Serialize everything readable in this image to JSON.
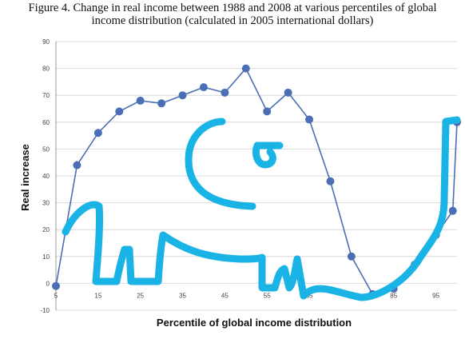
{
  "title_line1": "Figure 4. Change in real income between 1988 and 2008 at various percentiles of global",
  "title_line2": "income distribution (calculated in 2005 international dollars)",
  "chart_data": {
    "type": "line",
    "title": "Figure 4. Change in real income between 1988 and 2008 at various percentiles of global income distribution (calculated in 2005 international dollars)",
    "xlabel": "Percentile of global income distribution",
    "ylabel": "Real increase",
    "xlim": [
      5,
      100
    ],
    "ylim": [
      -10,
      90
    ],
    "yticks": [
      -10,
      0,
      10,
      20,
      30,
      40,
      50,
      60,
      70,
      80,
      90
    ],
    "xtick_labels": [
      "5",
      "15",
      "25",
      "35",
      "45",
      "55",
      "65",
      "75",
      "85",
      "95"
    ],
    "grid": true,
    "series": [
      {
        "name": "",
        "x": [
          5,
          10,
          15,
          20,
          25,
          30,
          35,
          40,
          45,
          50,
          55,
          60,
          65,
          70,
          75,
          80,
          85,
          90,
          95,
          99,
          100
        ],
        "y": [
          -1,
          44,
          56,
          64,
          68,
          67,
          70,
          73,
          71,
          80,
          64,
          71,
          61,
          38,
          10,
          -4,
          -2,
          7,
          18,
          27,
          60
        ],
        "color": "#4a6fb5"
      }
    ],
    "overlay": {
      "description": "hand-drawn elephant outline",
      "color": "#1ab3e6"
    }
  }
}
